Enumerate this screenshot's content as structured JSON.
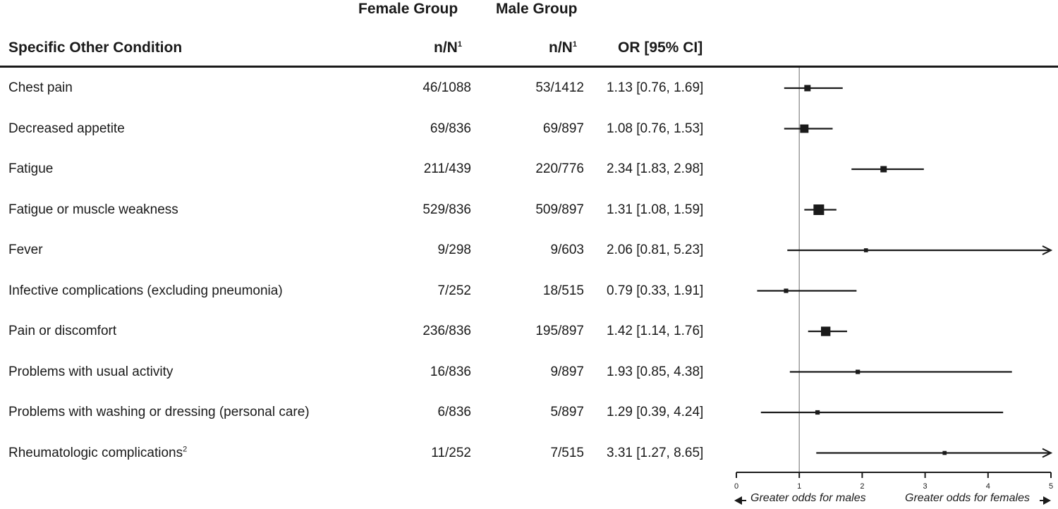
{
  "headers": {
    "female_group": "Female Group",
    "male_group": "Male Group",
    "condition": "Specific Other Condition",
    "nN_female": "n/N",
    "nN_male": "n/N",
    "nN_sup": "1",
    "or_ci": "OR [95% CI]"
  },
  "rows": [
    {
      "label": "Chest pain",
      "sup": "",
      "female": "46/1088",
      "male": "53/1412",
      "or_text": "1.13 [0.76, 1.69]"
    },
    {
      "label": "Decreased appetite",
      "sup": "",
      "female": "69/836",
      "male": "69/897",
      "or_text": "1.08 [0.76, 1.53]"
    },
    {
      "label": "Fatigue",
      "sup": "",
      "female": "211/439",
      "male": "220/776",
      "or_text": "2.34 [1.83, 2.98]"
    },
    {
      "label": "Fatigue or muscle weakness",
      "sup": "",
      "female": "529/836",
      "male": "509/897",
      "or_text": "1.31 [1.08, 1.59]"
    },
    {
      "label": "Fever",
      "sup": "",
      "female": "9/298",
      "male": "9/603",
      "or_text": "2.06 [0.81, 5.23]"
    },
    {
      "label": "Infective complications (excluding pneumonia)",
      "sup": "",
      "female": "7/252",
      "male": "18/515",
      "or_text": "0.79 [0.33, 1.91]"
    },
    {
      "label": "Pain or discomfort",
      "sup": "",
      "female": "236/836",
      "male": "195/897",
      "or_text": "1.42 [1.14, 1.76]"
    },
    {
      "label": "Problems with usual activity",
      "sup": "",
      "female": "16/836",
      "male": "9/897",
      "or_text": "1.93 [0.85, 4.38]"
    },
    {
      "label": "Problems with washing or dressing (personal care)",
      "sup": "",
      "female": "6/836",
      "male": "5/897",
      "or_text": "1.29 [0.39, 4.24]"
    },
    {
      "label": "Rheumatologic complications",
      "sup": "2",
      "female": "11/252",
      "male": "7/515",
      "or_text": "3.31 [1.27, 8.65]"
    }
  ],
  "chart_data": {
    "type": "forest",
    "xlim": [
      0,
      5
    ],
    "reference_line": 1,
    "x_ticks": [
      "0",
      "1",
      "2",
      "3",
      "4",
      "5"
    ],
    "footer_left": "Greater odds for males",
    "footer_right": "Greater odds for females",
    "series": [
      {
        "label": "Chest pain",
        "or": 1.13,
        "lo": 0.76,
        "hi": 1.69,
        "weight": 0.45
      },
      {
        "label": "Decreased appetite",
        "or": 1.08,
        "lo": 0.76,
        "hi": 1.53,
        "weight": 0.72
      },
      {
        "label": "Fatigue",
        "or": 2.34,
        "lo": 1.83,
        "hi": 2.98,
        "weight": 0.45
      },
      {
        "label": "Fatigue or muscle weakness",
        "or": 1.31,
        "lo": 1.08,
        "hi": 1.59,
        "weight": 1.0
      },
      {
        "label": "Fever",
        "or": 2.06,
        "lo": 0.81,
        "hi": 5.23,
        "weight": 0.15
      },
      {
        "label": "Infective complications (excluding pneumonia)",
        "or": 0.79,
        "lo": 0.33,
        "hi": 1.91,
        "weight": 0.2
      },
      {
        "label": "Pain or discomfort",
        "or": 1.42,
        "lo": 1.14,
        "hi": 1.76,
        "weight": 0.85
      },
      {
        "label": "Problems with usual activity",
        "or": 1.93,
        "lo": 0.85,
        "hi": 4.38,
        "weight": 0.2
      },
      {
        "label": "Problems with washing or dressing (personal care)",
        "or": 1.29,
        "lo": 0.39,
        "hi": 4.24,
        "weight": 0.2
      },
      {
        "label": "Rheumatologic complications",
        "or": 3.31,
        "lo": 1.27,
        "hi": 8.65,
        "weight": 0.15
      }
    ]
  }
}
